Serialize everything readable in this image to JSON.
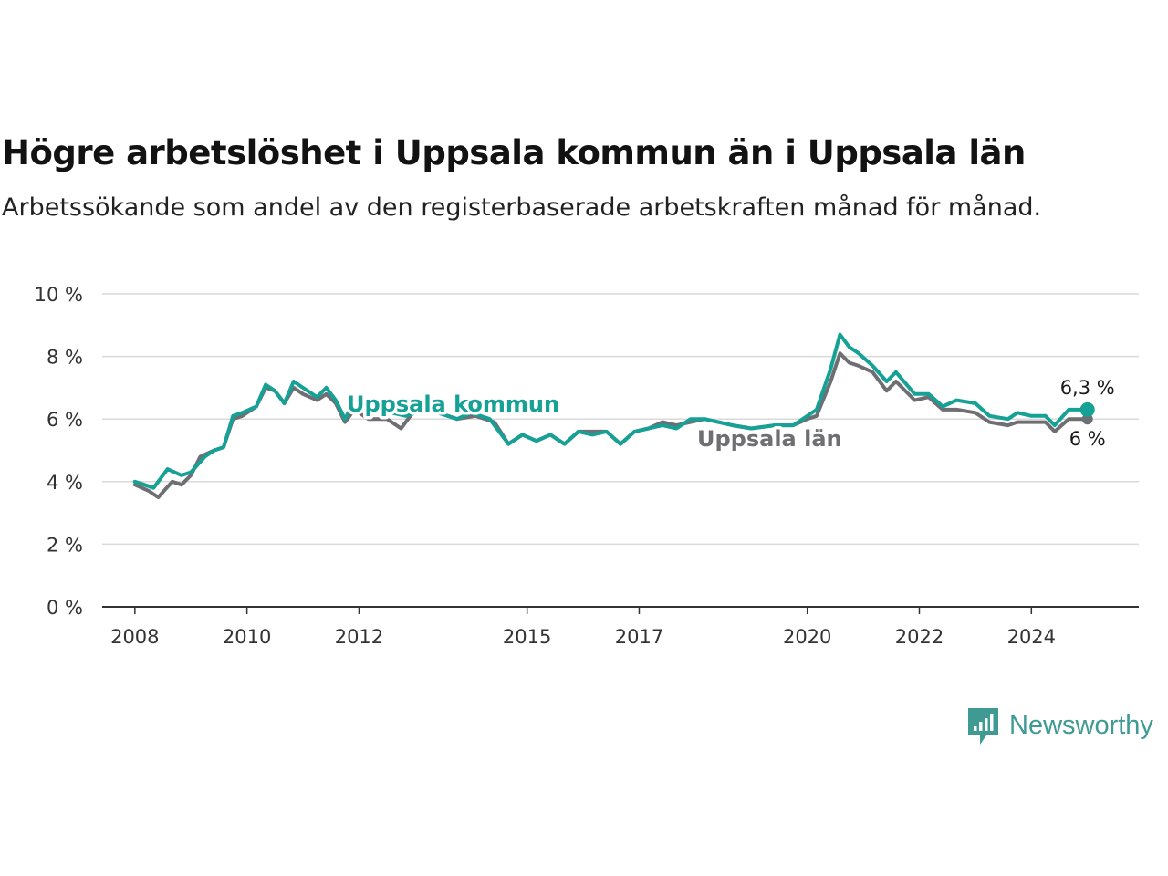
{
  "header": {
    "title": "Högre arbetslöshet i Uppsala kommun än i Uppsala län",
    "subtitle": "Arbetssökande som andel av den registerbaserade arbetskraften månad för månad."
  },
  "brand": {
    "name": "Newsworthy",
    "icon": "newsworthy-chart-bubble-icon",
    "color": "#3f9a93"
  },
  "chart_data": {
    "type": "line",
    "title": "Högre arbetslöshet i Uppsala kommun än i Uppsala län",
    "subtitle": "Arbetssökande som andel av den registerbaserade arbetskraften månad för månad.",
    "ylim": [
      0,
      10
    ],
    "yticks": [
      0,
      2,
      4,
      6,
      8,
      10
    ],
    "ytick_labels": [
      "0 %",
      "2 %",
      "4 %",
      "6 %",
      "8 %",
      "10 %"
    ],
    "xlim": [
      "2007-06",
      "2025-12"
    ],
    "xticks": [
      "2008-01",
      "2010-01",
      "2012-01",
      "2015-01",
      "2017-01",
      "2020-01",
      "2022-01",
      "2024-01"
    ],
    "xtick_labels": [
      "2008",
      "2010",
      "2012",
      "2015",
      "2017",
      "2020",
      "2022",
      "2024"
    ],
    "grid": "horizontal",
    "series": [
      {
        "name": "Uppsala län",
        "color": "#6e6e73",
        "end_label": "6 %",
        "points": [
          [
            "2008-01",
            3.9
          ],
          [
            "2008-04",
            3.7
          ],
          [
            "2008-06",
            3.5
          ],
          [
            "2008-09",
            4.0
          ],
          [
            "2008-11",
            3.9
          ],
          [
            "2009-01",
            4.2
          ],
          [
            "2009-03",
            4.8
          ],
          [
            "2009-06",
            5.0
          ],
          [
            "2009-08",
            5.1
          ],
          [
            "2009-10",
            6.0
          ],
          [
            "2009-12",
            6.1
          ],
          [
            "2010-03",
            6.4
          ],
          [
            "2010-05",
            7.0
          ],
          [
            "2010-07",
            6.9
          ],
          [
            "2010-09",
            6.5
          ],
          [
            "2010-11",
            7.0
          ],
          [
            "2011-01",
            6.8
          ],
          [
            "2011-04",
            6.6
          ],
          [
            "2011-06",
            6.8
          ],
          [
            "2011-08",
            6.5
          ],
          [
            "2011-10",
            5.9
          ],
          [
            "2011-12",
            6.3
          ],
          [
            "2012-03",
            6.0
          ],
          [
            "2012-07",
            6.0
          ],
          [
            "2012-10",
            5.7
          ],
          [
            "2013-01",
            6.3
          ],
          [
            "2013-06",
            6.2
          ],
          [
            "2013-10",
            6.0
          ],
          [
            "2014-02",
            6.1
          ],
          [
            "2014-06",
            5.9
          ],
          [
            "2014-09",
            5.2
          ],
          [
            "2014-12",
            5.5
          ],
          [
            "2015-03",
            5.3
          ],
          [
            "2015-06",
            5.5
          ],
          [
            "2015-09",
            5.2
          ],
          [
            "2015-12",
            5.6
          ],
          [
            "2016-03",
            5.6
          ],
          [
            "2016-06",
            5.6
          ],
          [
            "2016-09",
            5.2
          ],
          [
            "2016-12",
            5.6
          ],
          [
            "2017-03",
            5.7
          ],
          [
            "2017-06",
            5.9
          ],
          [
            "2017-09",
            5.8
          ],
          [
            "2017-12",
            5.9
          ],
          [
            "2018-03",
            6.0
          ],
          [
            "2018-09",
            5.8
          ],
          [
            "2019-01",
            5.7
          ],
          [
            "2019-06",
            5.8
          ],
          [
            "2019-10",
            5.8
          ],
          [
            "2020-01",
            6.0
          ],
          [
            "2020-03",
            6.1
          ],
          [
            "2020-06",
            7.2
          ],
          [
            "2020-08",
            8.1
          ],
          [
            "2020-10",
            7.8
          ],
          [
            "2020-12",
            7.7
          ],
          [
            "2021-03",
            7.5
          ],
          [
            "2021-06",
            6.9
          ],
          [
            "2021-08",
            7.2
          ],
          [
            "2021-12",
            6.6
          ],
          [
            "2022-03",
            6.7
          ],
          [
            "2022-06",
            6.3
          ],
          [
            "2022-09",
            6.3
          ],
          [
            "2023-01",
            6.2
          ],
          [
            "2023-04",
            5.9
          ],
          [
            "2023-08",
            5.8
          ],
          [
            "2023-10",
            5.9
          ],
          [
            "2024-01",
            5.9
          ],
          [
            "2024-04",
            5.9
          ],
          [
            "2024-06",
            5.6
          ],
          [
            "2024-09",
            6.0
          ],
          [
            "2025-01",
            6.0
          ]
        ]
      },
      {
        "name": "Uppsala kommun",
        "color": "#15a195",
        "end_label": "6,3 %",
        "points": [
          [
            "2008-01",
            4.0
          ],
          [
            "2008-03",
            3.9
          ],
          [
            "2008-05",
            3.8
          ],
          [
            "2008-08",
            4.4
          ],
          [
            "2008-11",
            4.2
          ],
          [
            "2009-01",
            4.3
          ],
          [
            "2009-04",
            4.8
          ],
          [
            "2009-06",
            5.0
          ],
          [
            "2009-08",
            5.1
          ],
          [
            "2009-10",
            6.1
          ],
          [
            "2009-12",
            6.2
          ],
          [
            "2010-03",
            6.4
          ],
          [
            "2010-05",
            7.1
          ],
          [
            "2010-07",
            6.9
          ],
          [
            "2010-09",
            6.5
          ],
          [
            "2010-11",
            7.2
          ],
          [
            "2011-01",
            7.0
          ],
          [
            "2011-04",
            6.7
          ],
          [
            "2011-06",
            7.0
          ],
          [
            "2011-08",
            6.6
          ],
          [
            "2011-10",
            6.0
          ],
          [
            "2011-12",
            6.6
          ],
          [
            "2012-04",
            6.3
          ],
          [
            "2012-08",
            6.2
          ],
          [
            "2012-11",
            6.1
          ],
          [
            "2013-03",
            6.3
          ],
          [
            "2013-06",
            6.2
          ],
          [
            "2013-10",
            6.0
          ],
          [
            "2014-01",
            6.2
          ],
          [
            "2014-05",
            6.0
          ],
          [
            "2014-09",
            5.2
          ],
          [
            "2014-12",
            5.5
          ],
          [
            "2015-03",
            5.3
          ],
          [
            "2015-06",
            5.5
          ],
          [
            "2015-09",
            5.2
          ],
          [
            "2015-12",
            5.6
          ],
          [
            "2016-03",
            5.5
          ],
          [
            "2016-06",
            5.6
          ],
          [
            "2016-09",
            5.2
          ],
          [
            "2016-12",
            5.6
          ],
          [
            "2017-03",
            5.7
          ],
          [
            "2017-06",
            5.8
          ],
          [
            "2017-09",
            5.7
          ],
          [
            "2017-12",
            6.0
          ],
          [
            "2018-03",
            6.0
          ],
          [
            "2018-09",
            5.8
          ],
          [
            "2019-01",
            5.7
          ],
          [
            "2019-06",
            5.8
          ],
          [
            "2019-10",
            5.8
          ],
          [
            "2020-01",
            6.1
          ],
          [
            "2020-03",
            6.3
          ],
          [
            "2020-06",
            7.6
          ],
          [
            "2020-08",
            8.7
          ],
          [
            "2020-10",
            8.3
          ],
          [
            "2020-12",
            8.1
          ],
          [
            "2021-03",
            7.7
          ],
          [
            "2021-06",
            7.2
          ],
          [
            "2021-08",
            7.5
          ],
          [
            "2021-12",
            6.8
          ],
          [
            "2022-03",
            6.8
          ],
          [
            "2022-06",
            6.4
          ],
          [
            "2022-09",
            6.6
          ],
          [
            "2023-01",
            6.5
          ],
          [
            "2023-04",
            6.1
          ],
          [
            "2023-08",
            6.0
          ],
          [
            "2023-10",
            6.2
          ],
          [
            "2024-01",
            6.1
          ],
          [
            "2024-04",
            6.1
          ],
          [
            "2024-06",
            5.8
          ],
          [
            "2024-09",
            6.3
          ],
          [
            "2025-01",
            6.3
          ]
        ]
      }
    ]
  }
}
